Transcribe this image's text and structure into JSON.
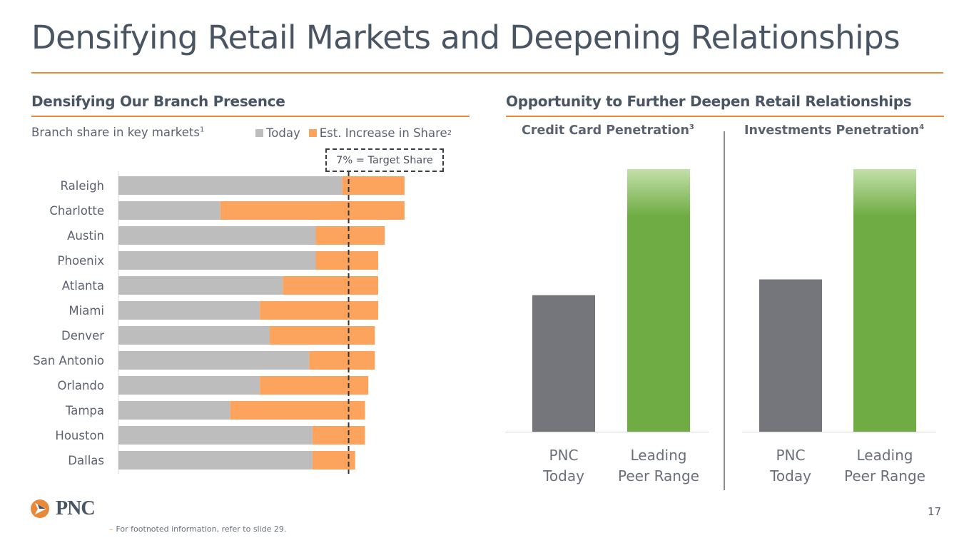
{
  "title": "Densifying Retail Markets and Deepening Relationships",
  "left_section": {
    "heading": "Densifying Our Branch Presence",
    "subtitle": "Branch share in key markets",
    "subtitle_sup": "1",
    "legend_today": "Today",
    "legend_increase": "Est. Increase in Share",
    "legend_increase_sup": "2",
    "target_label": "7% = Target Share"
  },
  "right_section": {
    "heading": "Opportunity to Further Deepen Retail Relationships",
    "panel1_title": "Credit Card Penetration",
    "panel1_sup": "3",
    "panel2_title": "Investments Penetration",
    "panel2_sup": "4"
  },
  "colors": {
    "today": "#bdbdbd",
    "increase": "#fca45e",
    "pnc": "#75767b",
    "peer": "#6fac43",
    "peer_light": "#c3dfaa",
    "accent": "#e8893a"
  },
  "chart_data": [
    {
      "type": "bar",
      "orientation": "horizontal",
      "stacked": true,
      "title": "Branch share in key markets",
      "categories": [
        "Raleigh",
        "Charlotte",
        "Austin",
        "Phoenix",
        "Atlanta",
        "Miami",
        "Denver",
        "San Antonio",
        "Orlando",
        "Tampa",
        "Houston",
        "Dallas"
      ],
      "series": [
        {
          "name": "Today",
          "values": [
            6.8,
            3.1,
            6.0,
            6.0,
            5.0,
            4.3,
            4.6,
            5.8,
            4.3,
            3.4,
            5.9,
            5.9
          ]
        },
        {
          "name": "Est. Increase in Share",
          "values": [
            1.9,
            5.6,
            2.1,
            1.9,
            2.9,
            3.6,
            3.2,
            2.0,
            3.3,
            4.1,
            1.6,
            1.3
          ]
        }
      ],
      "target": 7,
      "xlim": [
        0,
        10.2
      ],
      "legend": "top"
    },
    {
      "type": "bar",
      "title": "Credit Card Penetration",
      "categories": [
        "PNC\nToday",
        "Leading\nPeer Range"
      ],
      "values": [
        0.52,
        1.0
      ]
    },
    {
      "type": "bar",
      "title": "Investments Penetration",
      "categories": [
        "PNC\nToday",
        "Leading\nPeer Range"
      ],
      "values": [
        0.58,
        1.0
      ]
    }
  ],
  "footer": {
    "note": "For footnoted information, refer to slide 29.",
    "page_number": "17",
    "logo_text": "PNC"
  }
}
